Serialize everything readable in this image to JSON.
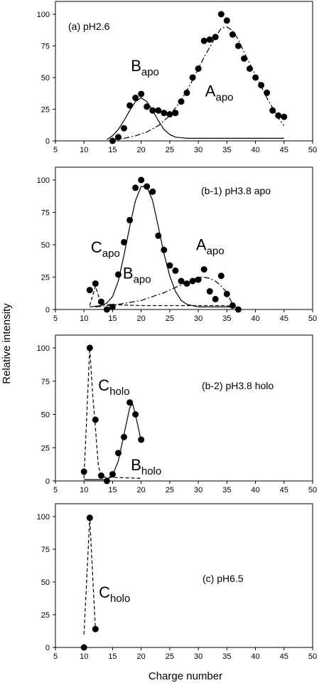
{
  "figure": {
    "ylabel": "Relative intensity",
    "xlabel": "Charge number"
  },
  "chart_data": [
    {
      "type": "scatter",
      "label": "(a) pH2.6",
      "xlim": [
        5,
        50
      ],
      "ylim": [
        0,
        100
      ],
      "xticks": [
        "5",
        "10",
        "15",
        "20",
        "25",
        "30",
        "35",
        "40",
        "45",
        "50"
      ],
      "yticks": [
        "0",
        "25",
        "50",
        "75",
        "100"
      ],
      "points": [
        [
          15,
          0
        ],
        [
          16,
          3
        ],
        [
          17,
          10
        ],
        [
          18,
          28
        ],
        [
          19,
          34
        ],
        [
          20,
          37
        ],
        [
          21,
          27
        ],
        [
          22,
          24
        ],
        [
          23,
          24
        ],
        [
          24,
          22
        ],
        [
          25,
          21
        ],
        [
          26,
          22
        ],
        [
          27,
          31
        ],
        [
          28,
          38
        ],
        [
          29,
          50
        ],
        [
          30,
          57
        ],
        [
          31,
          79
        ],
        [
          32,
          80
        ],
        [
          33,
          82
        ],
        [
          34,
          100
        ],
        [
          35,
          95
        ],
        [
          36,
          84
        ],
        [
          37,
          75
        ],
        [
          38,
          65
        ],
        [
          39,
          57
        ],
        [
          40,
          50
        ],
        [
          41,
          44
        ],
        [
          42,
          38
        ],
        [
          43,
          24
        ],
        [
          44,
          20
        ],
        [
          45,
          19
        ]
      ],
      "fits": [
        {
          "style": "solid",
          "points": [
            [
              14,
              1
            ],
            [
              15,
              4
            ],
            [
              16,
              9
            ],
            [
              17,
              16
            ],
            [
              18,
              24
            ],
            [
              19,
              31
            ],
            [
              20,
              34
            ],
            [
              21,
              31
            ],
            [
              22,
              24
            ],
            [
              23,
              16
            ],
            [
              24,
              9
            ],
            [
              25,
              5
            ],
            [
              26,
              3
            ],
            [
              28,
              2
            ],
            [
              45,
              2
            ]
          ]
        },
        {
          "style": "dashdot",
          "points": [
            [
              15,
              1
            ],
            [
              17,
              2
            ],
            [
              19,
              4
            ],
            [
              21,
              7
            ],
            [
              23,
              12
            ],
            [
              25,
              20
            ],
            [
              27,
              32
            ],
            [
              29,
              48
            ],
            [
              31,
              66
            ],
            [
              33,
              82
            ],
            [
              34,
              89
            ],
            [
              35,
              90
            ],
            [
              36,
              87
            ],
            [
              37,
              80
            ],
            [
              38,
              70
            ],
            [
              40,
              52
            ],
            [
              42,
              34
            ],
            [
              44,
              18
            ],
            [
              45,
              12
            ]
          ]
        }
      ],
      "annotations": [
        {
          "main": "B",
          "sub": "apo",
          "x": 18.2,
          "y": 55
        },
        {
          "main": "A",
          "sub": "apo",
          "x": 31.2,
          "y": 35
        }
      ]
    },
    {
      "type": "scatter",
      "label": "(b-1) pH3.8 apo",
      "xlim": [
        5,
        50
      ],
      "ylim": [
        0,
        100
      ],
      "xticks": [
        "5",
        "10",
        "15",
        "20",
        "25",
        "30",
        "35",
        "40",
        "45",
        "50"
      ],
      "yticks": [
        "0",
        "25",
        "50",
        "75",
        "100"
      ],
      "points": [
        [
          11,
          15
        ],
        [
          12,
          20
        ],
        [
          13,
          6
        ],
        [
          14,
          0
        ],
        [
          15,
          2
        ],
        [
          16,
          27
        ],
        [
          17,
          52
        ],
        [
          18,
          69
        ],
        [
          19,
          94
        ],
        [
          20,
          100
        ],
        [
          21,
          95
        ],
        [
          22,
          91
        ],
        [
          23,
          57
        ],
        [
          24,
          46
        ],
        [
          25,
          34
        ],
        [
          26,
          30
        ],
        [
          27,
          22
        ],
        [
          28,
          20
        ],
        [
          29,
          22
        ],
        [
          30,
          23
        ],
        [
          31,
          31
        ],
        [
          32,
          14
        ],
        [
          33,
          8
        ],
        [
          34,
          26
        ],
        [
          35,
          12
        ],
        [
          36,
          3
        ],
        [
          37,
          0
        ]
      ],
      "fits": [
        {
          "style": "solid",
          "points": [
            [
              11,
              2
            ],
            [
              13,
              3
            ],
            [
              14,
              5
            ],
            [
              15,
              10
            ],
            [
              16,
              22
            ],
            [
              17,
              42
            ],
            [
              18,
              64
            ],
            [
              19,
              84
            ],
            [
              20,
              95
            ],
            [
              21,
              95
            ],
            [
              22,
              84
            ],
            [
              23,
              64
            ],
            [
              24,
              43
            ],
            [
              25,
              26
            ],
            [
              26,
              14
            ],
            [
              27,
              7
            ],
            [
              28,
              4
            ],
            [
              30,
              2
            ],
            [
              36,
              2
            ]
          ]
        },
        {
          "style": "dashdot",
          "points": [
            [
              12,
              2
            ],
            [
              16,
              4
            ],
            [
              20,
              7
            ],
            [
              24,
              13
            ],
            [
              27,
              19
            ],
            [
              29,
              23
            ],
            [
              30,
              25
            ],
            [
              31,
              25
            ],
            [
              32,
              24
            ],
            [
              33,
              22
            ],
            [
              34,
              18
            ],
            [
              35,
              13
            ],
            [
              36,
              4
            ],
            [
              37,
              0
            ]
          ]
        },
        {
          "style": "dashed",
          "points": [
            [
              11,
              3
            ],
            [
              12,
              18
            ],
            [
              13,
              4
            ],
            [
              20,
              3
            ],
            [
              30,
              3
            ],
            [
              35,
              3
            ],
            [
              36,
              2
            ]
          ]
        }
      ],
      "annotations": [
        {
          "main": "C",
          "sub": "apo",
          "x": 11.2,
          "y": 44
        },
        {
          "main": "B",
          "sub": "apo",
          "x": 16.8,
          "y": 24
        },
        {
          "main": "A",
          "sub": "apo",
          "x": 29.6,
          "y": 46
        }
      ]
    },
    {
      "type": "scatter",
      "label": "(b-2) pH3.8 holo",
      "xlim": [
        5,
        50
      ],
      "ylim": [
        0,
        100
      ],
      "xticks": [
        "5",
        "10",
        "15",
        "20",
        "25",
        "30",
        "35",
        "40",
        "45",
        "50"
      ],
      "yticks": [
        "0",
        "25",
        "50",
        "75",
        "100"
      ],
      "points": [
        [
          10,
          7
        ],
        [
          11,
          100
        ],
        [
          12,
          46
        ],
        [
          13,
          4
        ],
        [
          14,
          0
        ],
        [
          15,
          5
        ],
        [
          16,
          21
        ],
        [
          17,
          33
        ],
        [
          18,
          59
        ],
        [
          19,
          50
        ],
        [
          20,
          31
        ]
      ],
      "fits": [
        {
          "style": "dashed",
          "points": [
            [
              10,
              2
            ],
            [
              10.5,
              50
            ],
            [
              11,
              100
            ],
            [
              11.5,
              66
            ],
            [
              12,
              40
            ],
            [
              12.5,
              12
            ],
            [
              13,
              3
            ],
            [
              20,
              2
            ]
          ]
        },
        {
          "style": "solid",
          "points": [
            [
              10,
              1
            ],
            [
              14,
              1
            ],
            [
              15,
              4
            ],
            [
              16,
              15
            ],
            [
              17,
              35
            ],
            [
              18,
              55
            ],
            [
              18.5,
              58
            ],
            [
              19,
              50
            ],
            [
              20,
              30
            ]
          ]
        }
      ],
      "annotations": [
        {
          "main": "C",
          "sub": "holo",
          "x": 12.5,
          "y": 68
        },
        {
          "main": "B",
          "sub": "holo",
          "x": 18.2,
          "y": 8
        }
      ]
    },
    {
      "type": "scatter",
      "label": "(c) pH6.5",
      "xlim": [
        5,
        50
      ],
      "ylim": [
        0,
        100
      ],
      "xticks": [
        "5",
        "10",
        "15",
        "20",
        "25",
        "30",
        "35",
        "40",
        "45",
        "50"
      ],
      "yticks": [
        "0",
        "25",
        "50",
        "75",
        "100"
      ],
      "points": [
        [
          10,
          0
        ],
        [
          11,
          99
        ],
        [
          12,
          14
        ]
      ],
      "fits": [
        {
          "style": "dashed",
          "points": [
            [
              10,
              10
            ],
            [
              11,
              99
            ],
            [
              12,
              14
            ]
          ]
        }
      ],
      "annotations": [
        {
          "main": "C",
          "sub": "holo",
          "x": 12.6,
          "y": 38
        }
      ]
    }
  ]
}
